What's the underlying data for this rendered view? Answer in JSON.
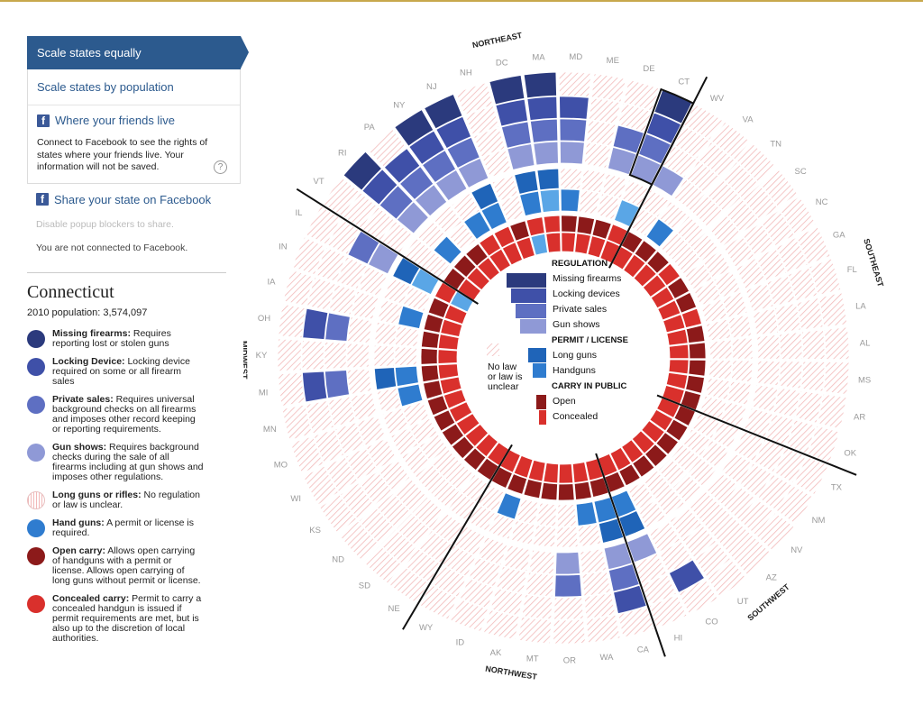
{
  "panel": {
    "scale_equal": "Scale states equally",
    "scale_population": "Scale states by population",
    "friends_label": "Where your friends live",
    "facebook_desc": "Connect to Facebook to see the rights of states where your friends live. Your information will not be saved.",
    "help_glyph": "?",
    "fb_glyph": "f",
    "share_label": "Share your state on Facebook",
    "popup_note": "Disable popup blockers to share.",
    "connect_status": "You are not connected to Facebook."
  },
  "selected_state": {
    "name": "Connecticut",
    "population_label": "2010 population: 3,574,097"
  },
  "legend": [
    {
      "title": "Missing firearms:",
      "text": " Requires reporting lost or stolen guns",
      "color": "#2b3a7d",
      "kind": "dot"
    },
    {
      "title": "Locking Device:",
      "text": " Locking device required on some or all firearm sales",
      "color": "#3f50a8",
      "kind": "dot"
    },
    {
      "title": "Private sales:",
      "text": " Requires universal background checks on all firearms and imposes other record keeping or reporting requirements.",
      "color": "#5e6fc2",
      "kind": "dot"
    },
    {
      "title": "Gun shows:",
      "text": " Requires background checks during the sale of all firearms including at gun shows and imposes other regulations.",
      "color": "#8f99d6",
      "kind": "dot"
    },
    {
      "title": "Long guns or rifles:",
      "text": " No regulation or law is unclear.",
      "color": "#f2b9b9",
      "kind": "hatch"
    },
    {
      "title": "Hand guns:",
      "text": " A permit or license is required.",
      "color": "#2f7ccf",
      "kind": "dot"
    },
    {
      "title": "Open carry:",
      "text": " Allows open carrying of handguns with a permit or license. Allows open carrying of long guns without permit or license.",
      "color": "#8c1a1a",
      "kind": "dot"
    },
    {
      "title": "Concealed carry:",
      "text": " Permit to carry a concealed handgun is issued if permit requirements are met, but is also up to the discretion of local authorities.",
      "color": "#d9302c",
      "kind": "dot"
    }
  ],
  "center_legend": {
    "regulation_header": "REGULATION",
    "regulation_items": [
      "Missing firearms",
      "Locking devices",
      "Private sales",
      "Gun shows"
    ],
    "permit_header": "PERMIT / LICENSE",
    "permit_items": [
      "Long guns",
      "Handguns"
    ],
    "carry_header": "CARRY IN PUBLIC",
    "carry_items": [
      "Open",
      "Concealed"
    ],
    "no_law_lines": [
      "No law",
      "or law is",
      "unclear"
    ]
  },
  "colors": {
    "missing": "#2b3a7d",
    "locking": "#3f50a8",
    "private": "#5e6fc2",
    "gunshows": "#8f99d6",
    "longguns": "#1f64b8",
    "handguns": "#2f7ccf",
    "handguns_light": "#5aa6e6",
    "open": "#8c1a1a",
    "concealed": "#d9302c",
    "hatch": "#f2b9b9"
  },
  "regions": [
    {
      "name": "MIDWEST"
    },
    {
      "name": "NORTHEAST"
    },
    {
      "name": "SOUTHEAST"
    },
    {
      "name": "SOUTHWEST"
    },
    {
      "name": "NORTHWEST"
    }
  ],
  "states": [
    {
      "abbr": "MI",
      "missing": 0,
      "locking": 1,
      "private": 1,
      "gunshows": 0,
      "longguns": 1,
      "handguns": 1,
      "open": 1,
      "concealed": 1
    },
    {
      "abbr": "KY",
      "missing": 0,
      "locking": 0,
      "private": 0,
      "gunshows": 0,
      "longguns": 0,
      "handguns": 0,
      "open": 1,
      "concealed": 1
    },
    {
      "abbr": "OH",
      "missing": 0,
      "locking": 1,
      "private": 1,
      "gunshows": 0,
      "longguns": 0,
      "handguns": 0,
      "open": 1,
      "concealed": 1
    },
    {
      "abbr": "IA",
      "missing": 0,
      "locking": 0,
      "private": 0,
      "gunshows": 0,
      "longguns": 0,
      "handguns": 1,
      "open": 1,
      "concealed": 1
    },
    {
      "abbr": "IN",
      "missing": 0,
      "locking": 0,
      "private": 0,
      "gunshows": 0,
      "longguns": 0,
      "handguns": 0,
      "open": 1,
      "concealed": 1
    },
    {
      "abbr": "IL",
      "missing": 0,
      "locking": 0,
      "private": 1,
      "gunshows": 1,
      "longguns": 1,
      "handguns": 1,
      "open": 0,
      "concealed": 0
    },
    {
      "abbr": "VT",
      "missing": 0,
      "locking": 0,
      "private": 0,
      "gunshows": 0,
      "longguns": 0,
      "handguns": 0,
      "open": 1,
      "concealed": 1
    },
    {
      "abbr": "RI",
      "missing": 1,
      "locking": 1,
      "private": 1,
      "gunshows": 1,
      "longguns": 0,
      "handguns": 1,
      "open": 1,
      "concealed": 1
    },
    {
      "abbr": "PA",
      "missing": 0,
      "locking": 1,
      "private": 1,
      "gunshows": 1,
      "longguns": 0,
      "handguns": 0,
      "open": 1,
      "concealed": 1
    },
    {
      "abbr": "NY",
      "missing": 1,
      "locking": 1,
      "private": 1,
      "gunshows": 1,
      "longguns": 0,
      "handguns": 1,
      "open": 0,
      "concealed": 1
    },
    {
      "abbr": "NJ",
      "missing": 1,
      "locking": 1,
      "private": 1,
      "gunshows": 1,
      "longguns": 1,
      "handguns": 1,
      "open": 0,
      "concealed": 1
    },
    {
      "abbr": "NH",
      "missing": 0,
      "locking": 0,
      "private": 0,
      "gunshows": 0,
      "longguns": 0,
      "handguns": 0,
      "open": 1,
      "concealed": 1
    },
    {
      "abbr": "DC",
      "missing": 1,
      "locking": 1,
      "private": 1,
      "gunshows": 1,
      "longguns": 1,
      "handguns": 1,
      "open": 0,
      "concealed": 0
    },
    {
      "abbr": "MA",
      "missing": 1,
      "locking": 1,
      "private": 1,
      "gunshows": 1,
      "longguns": 1,
      "handguns": 1,
      "open": 0,
      "concealed": 1
    },
    {
      "abbr": "MD",
      "missing": 0,
      "locking": 1,
      "private": 1,
      "gunshows": 1,
      "longguns": 0,
      "handguns": 1,
      "open": 1,
      "concealed": 1
    },
    {
      "abbr": "ME",
      "missing": 0,
      "locking": 0,
      "private": 0,
      "gunshows": 0,
      "longguns": 0,
      "handguns": 0,
      "open": 1,
      "concealed": 1
    },
    {
      "abbr": "DE",
      "missing": 0,
      "locking": 0,
      "private": 1,
      "gunshows": 1,
      "longguns": 0,
      "handguns": 0,
      "open": 1,
      "concealed": 1
    },
    {
      "abbr": "CT",
      "missing": 1,
      "locking": 1,
      "private": 1,
      "gunshows": 1,
      "longguns": 0,
      "handguns": 1,
      "open": 0,
      "concealed": 1
    },
    {
      "abbr": "WV",
      "missing": 0,
      "locking": 0,
      "private": 0,
      "gunshows": 1,
      "longguns": 0,
      "handguns": 0,
      "open": 1,
      "concealed": 1
    },
    {
      "abbr": "VA",
      "missing": 0,
      "locking": 0,
      "private": 0,
      "gunshows": 0,
      "longguns": 0,
      "handguns": 1,
      "open": 1,
      "concealed": 1
    },
    {
      "abbr": "TN",
      "missing": 0,
      "locking": 0,
      "private": 0,
      "gunshows": 0,
      "longguns": 0,
      "handguns": 0,
      "open": 1,
      "concealed": 1
    },
    {
      "abbr": "SC",
      "missing": 0,
      "locking": 0,
      "private": 0,
      "gunshows": 0,
      "longguns": 0,
      "handguns": 0,
      "open": 0,
      "concealed": 1
    },
    {
      "abbr": "NC",
      "missing": 0,
      "locking": 0,
      "private": 0,
      "gunshows": 0,
      "longguns": 0,
      "handguns": 0,
      "open": 1,
      "concealed": 1
    },
    {
      "abbr": "GA",
      "missing": 0,
      "locking": 0,
      "private": 0,
      "gunshows": 0,
      "longguns": 0,
      "handguns": 0,
      "open": 1,
      "concealed": 1
    },
    {
      "abbr": "FL",
      "missing": 0,
      "locking": 0,
      "private": 0,
      "gunshows": 0,
      "longguns": 0,
      "handguns": 0,
      "open": 0,
      "concealed": 1
    },
    {
      "abbr": "LA",
      "missing": 0,
      "locking": 0,
      "private": 0,
      "gunshows": 0,
      "longguns": 0,
      "handguns": 0,
      "open": 1,
      "concealed": 1
    },
    {
      "abbr": "AL",
      "missing": 0,
      "locking": 0,
      "private": 0,
      "gunshows": 0,
      "longguns": 0,
      "handguns": 0,
      "open": 1,
      "concealed": 1
    },
    {
      "abbr": "MS",
      "missing": 0,
      "locking": 0,
      "private": 0,
      "gunshows": 0,
      "longguns": 0,
      "handguns": 0,
      "open": 1,
      "concealed": 1
    },
    {
      "abbr": "AR",
      "missing": 0,
      "locking": 0,
      "private": 0,
      "gunshows": 0,
      "longguns": 0,
      "handguns": 0,
      "open": 1,
      "concealed": 1
    },
    {
      "abbr": "OK",
      "missing": 0,
      "locking": 0,
      "private": 0,
      "gunshows": 0,
      "longguns": 0,
      "handguns": 0,
      "open": 1,
      "concealed": 1
    },
    {
      "abbr": "TX",
      "missing": 0,
      "locking": 0,
      "private": 0,
      "gunshows": 0,
      "longguns": 0,
      "handguns": 0,
      "open": 1,
      "concealed": 1
    },
    {
      "abbr": "NM",
      "missing": 0,
      "locking": 0,
      "private": 0,
      "gunshows": 0,
      "longguns": 0,
      "handguns": 0,
      "open": 1,
      "concealed": 1
    },
    {
      "abbr": "NV",
      "missing": 0,
      "locking": 0,
      "private": 0,
      "gunshows": 0,
      "longguns": 0,
      "handguns": 0,
      "open": 1,
      "concealed": 1
    },
    {
      "abbr": "AZ",
      "missing": 0,
      "locking": 0,
      "private": 0,
      "gunshows": 0,
      "longguns": 0,
      "handguns": 0,
      "open": 1,
      "concealed": 1
    },
    {
      "abbr": "UT",
      "missing": 0,
      "locking": 0,
      "private": 0,
      "gunshows": 0,
      "longguns": 0,
      "handguns": 0,
      "open": 1,
      "concealed": 1
    },
    {
      "abbr": "CO",
      "missing": 0,
      "locking": 1,
      "private": 0,
      "gunshows": 0,
      "longguns": 0,
      "handguns": 0,
      "open": 1,
      "concealed": 1
    },
    {
      "abbr": "HI",
      "missing": 0,
      "locking": 0,
      "private": 0,
      "gunshows": 1,
      "longguns": 1,
      "handguns": 1,
      "open": 1,
      "concealed": 1
    },
    {
      "abbr": "CA",
      "missing": 0,
      "locking": 1,
      "private": 1,
      "gunshows": 1,
      "longguns": 1,
      "handguns": 1,
      "open": 1,
      "concealed": 1
    },
    {
      "abbr": "WA",
      "missing": 0,
      "locking": 0,
      "private": 0,
      "gunshows": 0,
      "longguns": 0,
      "handguns": 1,
      "open": 1,
      "concealed": 1
    },
    {
      "abbr": "OR",
      "missing": 0,
      "locking": 0,
      "private": 1,
      "gunshows": 1,
      "longguns": 0,
      "handguns": 0,
      "open": 1,
      "concealed": 1
    },
    {
      "abbr": "MT",
      "missing": 0,
      "locking": 0,
      "private": 0,
      "gunshows": 0,
      "longguns": 0,
      "handguns": 0,
      "open": 1,
      "concealed": 1
    },
    {
      "abbr": "AK",
      "missing": 0,
      "locking": 0,
      "private": 0,
      "gunshows": 0,
      "longguns": 0,
      "handguns": 0,
      "open": 1,
      "concealed": 1
    },
    {
      "abbr": "ID",
      "missing": 0,
      "locking": 0,
      "private": 0,
      "gunshows": 0,
      "longguns": 0,
      "handguns": 1,
      "open": 1,
      "concealed": 1
    },
    {
      "abbr": "WY",
      "missing": 0,
      "locking": 0,
      "private": 0,
      "gunshows": 0,
      "longguns": 0,
      "handguns": 0,
      "open": 1,
      "concealed": 1
    },
    {
      "abbr": "NE",
      "missing": 0,
      "locking": 0,
      "private": 0,
      "gunshows": 0,
      "longguns": 0,
      "handguns": 0,
      "open": 1,
      "concealed": 1
    },
    {
      "abbr": "SD",
      "missing": 0,
      "locking": 0,
      "private": 0,
      "gunshows": 0,
      "longguns": 0,
      "handguns": 0,
      "open": 1,
      "concealed": 1
    },
    {
      "abbr": "ND",
      "missing": 0,
      "locking": 0,
      "private": 0,
      "gunshows": 0,
      "longguns": 0,
      "handguns": 0,
      "open": 1,
      "concealed": 1
    },
    {
      "abbr": "KS",
      "missing": 0,
      "locking": 0,
      "private": 0,
      "gunshows": 0,
      "longguns": 0,
      "handguns": 0,
      "open": 1,
      "concealed": 1
    },
    {
      "abbr": "WI",
      "missing": 0,
      "locking": 0,
      "private": 0,
      "gunshows": 0,
      "longguns": 0,
      "handguns": 0,
      "open": 1,
      "concealed": 1
    },
    {
      "abbr": "MO",
      "missing": 0,
      "locking": 0,
      "private": 0,
      "gunshows": 0,
      "longguns": 0,
      "handguns": 0,
      "open": 1,
      "concealed": 1
    },
    {
      "abbr": "MN",
      "missing": 0,
      "locking": 0,
      "private": 0,
      "gunshows": 0,
      "longguns": 0,
      "handguns": 1,
      "open": 1,
      "concealed": 1
    }
  ],
  "selected_abbr": "CT"
}
